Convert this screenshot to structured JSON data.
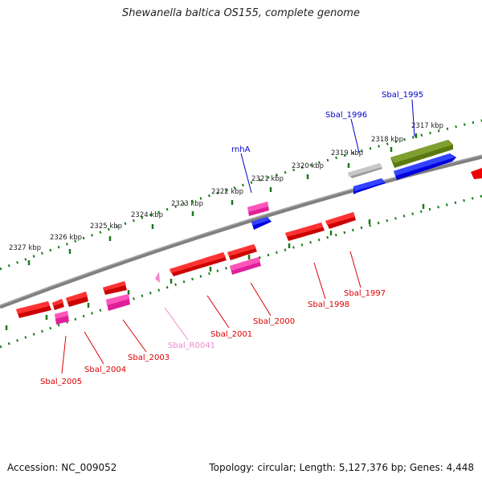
{
  "title": "Shewanella baltica OS155, complete genome",
  "footer": {
    "accession": "Accession: NC_009052",
    "summary": "Topology: circular; Length: 5,127,376 bp; Genes: 4,448"
  },
  "colors": {
    "forward_cds": "#0000dd",
    "reverse_cds": "#ee0000",
    "rna": "#e0209a",
    "pseudo": "#b0b0b0",
    "other": "#5a7a10",
    "axis": "#777777",
    "ticks": "#1a7a1a",
    "label_fwd": "#0000cc",
    "label_rev": "#dd0000",
    "label_rna": "#ee88cc"
  },
  "scale": {
    "ticks": [
      "2317 kbp",
      "2318 kbp",
      "2319 kbp",
      "2320 kbp",
      "2321 kbp",
      "2322 kbp",
      "2323 kbp",
      "2324 kbp",
      "2325 kbp",
      "2326 kbp",
      "2327 kbp"
    ]
  },
  "genes": {
    "Sbal_1995": "Sbal_1995",
    "Sbal_1996": "Sbal_1996",
    "rnhA": "rnhA",
    "Sbal_1997": "Sbal_1997",
    "Sbal_1998": "Sbal_1998",
    "Sbal_2000": "Sbal_2000",
    "Sbal_2001": "Sbal_2001",
    "Sbal_R0041": "Sbal_R0041",
    "Sbal_2003": "Sbal_2003",
    "Sbal_2004": "Sbal_2004",
    "Sbal_2005": "Sbal_2005"
  }
}
